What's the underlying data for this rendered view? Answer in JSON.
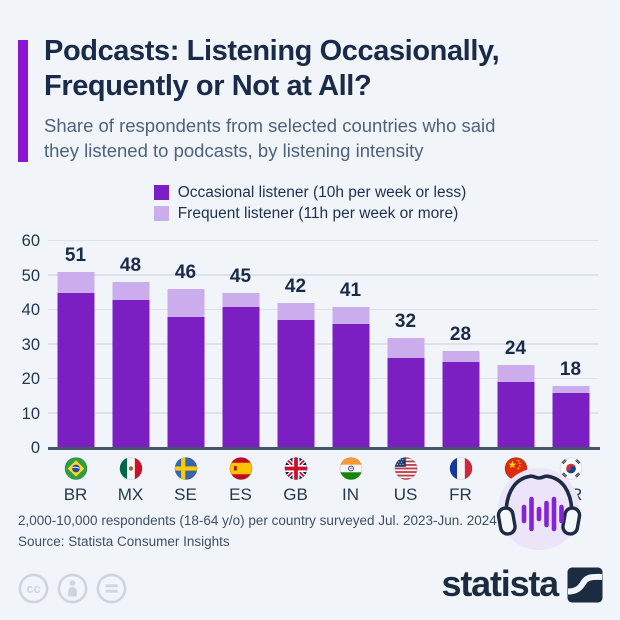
{
  "header": {
    "title_line1": "Podcasts: Listening Occasionally,",
    "title_line2": "Frequently or Not at All?",
    "subtitle_line1": "Share of respondents from selected countries who said",
    "subtitle_line2": "they listened to podcasts, by listening intensity"
  },
  "legend": [
    {
      "label": "Occasional listener (10h per week or less)",
      "color": "#7c1fc2"
    },
    {
      "label": "Frequent listener (11h per week or more)",
      "color": "#cbadee"
    }
  ],
  "chart_data": {
    "type": "bar",
    "stacked": true,
    "title": "Podcasts: Listening Occasionally, Frequently or Not at All?",
    "categories": [
      "BR",
      "MX",
      "SE",
      "ES",
      "GB",
      "IN",
      "US",
      "FR",
      "CN",
      "KR"
    ],
    "series": [
      {
        "name": "Occasional listener (10h per week or less)",
        "color": "#7c1fc2",
        "values": [
          45,
          43,
          38,
          41,
          37,
          36,
          26,
          25,
          19,
          16
        ]
      },
      {
        "name": "Frequent listener (11h per week or more)",
        "color": "#cbadee",
        "values": [
          6,
          5,
          8,
          4,
          5,
          5,
          6,
          3,
          5,
          2
        ]
      }
    ],
    "totals": [
      51,
      48,
      46,
      45,
      42,
      41,
      32,
      28,
      24,
      18
    ],
    "xlabel": "",
    "ylabel": "",
    "ylim": [
      0,
      60
    ],
    "yticks": [
      0,
      10,
      20,
      30,
      40,
      50,
      60
    ],
    "grid": true,
    "legend_position": "top"
  },
  "footer": {
    "note": "2,000-10,000 respondents (18-64 y/o) per country surveyed Jul. 2023-Jun. 2024",
    "source": "Source: Statista Consumer Insights",
    "brand": "statista"
  },
  "colors": {
    "background": "#f1f5f9",
    "accent_bar": "#8a16d4",
    "occasional": "#7c1fc2",
    "frequent": "#cbadee",
    "title_navy": "#1a2b49",
    "gridline": "#dce2eb",
    "axis": "#45556a"
  },
  "icons": [
    "headphones-soundwave-icon",
    "cc-license-icon",
    "cc-attribution-icon",
    "cc-nd-icon",
    "statista-logo-mark",
    "flag-br-icon",
    "flag-mx-icon",
    "flag-se-icon",
    "flag-es-icon",
    "flag-gb-icon",
    "flag-in-icon",
    "flag-us-icon",
    "flag-fr-icon",
    "flag-cn-icon",
    "flag-kr-icon"
  ]
}
